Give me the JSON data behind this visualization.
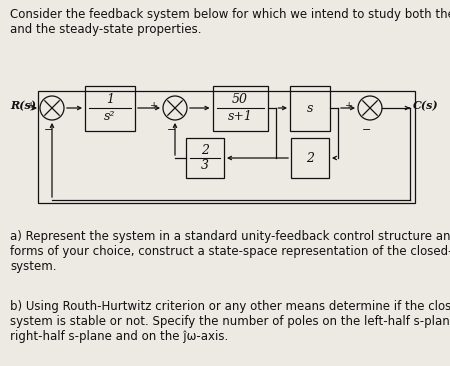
{
  "bg_color": "#edeae4",
  "text_color": "#111111",
  "box_color": "#111111",
  "title_text": "Consider the feedback system below for which we intend to study both the stability\nand the steady-state properties.",
  "part_a": "a) Represent the system in a standard unity-feedback control structure and using any\nforms of your choice, construct a state-space representation of the closed-loop\nsystem.",
  "part_b": "b) Using Routh-Hurtwitz criterion or any other means determine if the closed-loop\nsystem is stable or not. Specify the number of poles on the left-half s-plane, on the\nright-half s-plane and on the ĵω-axis.",
  "font_size": 8.5
}
